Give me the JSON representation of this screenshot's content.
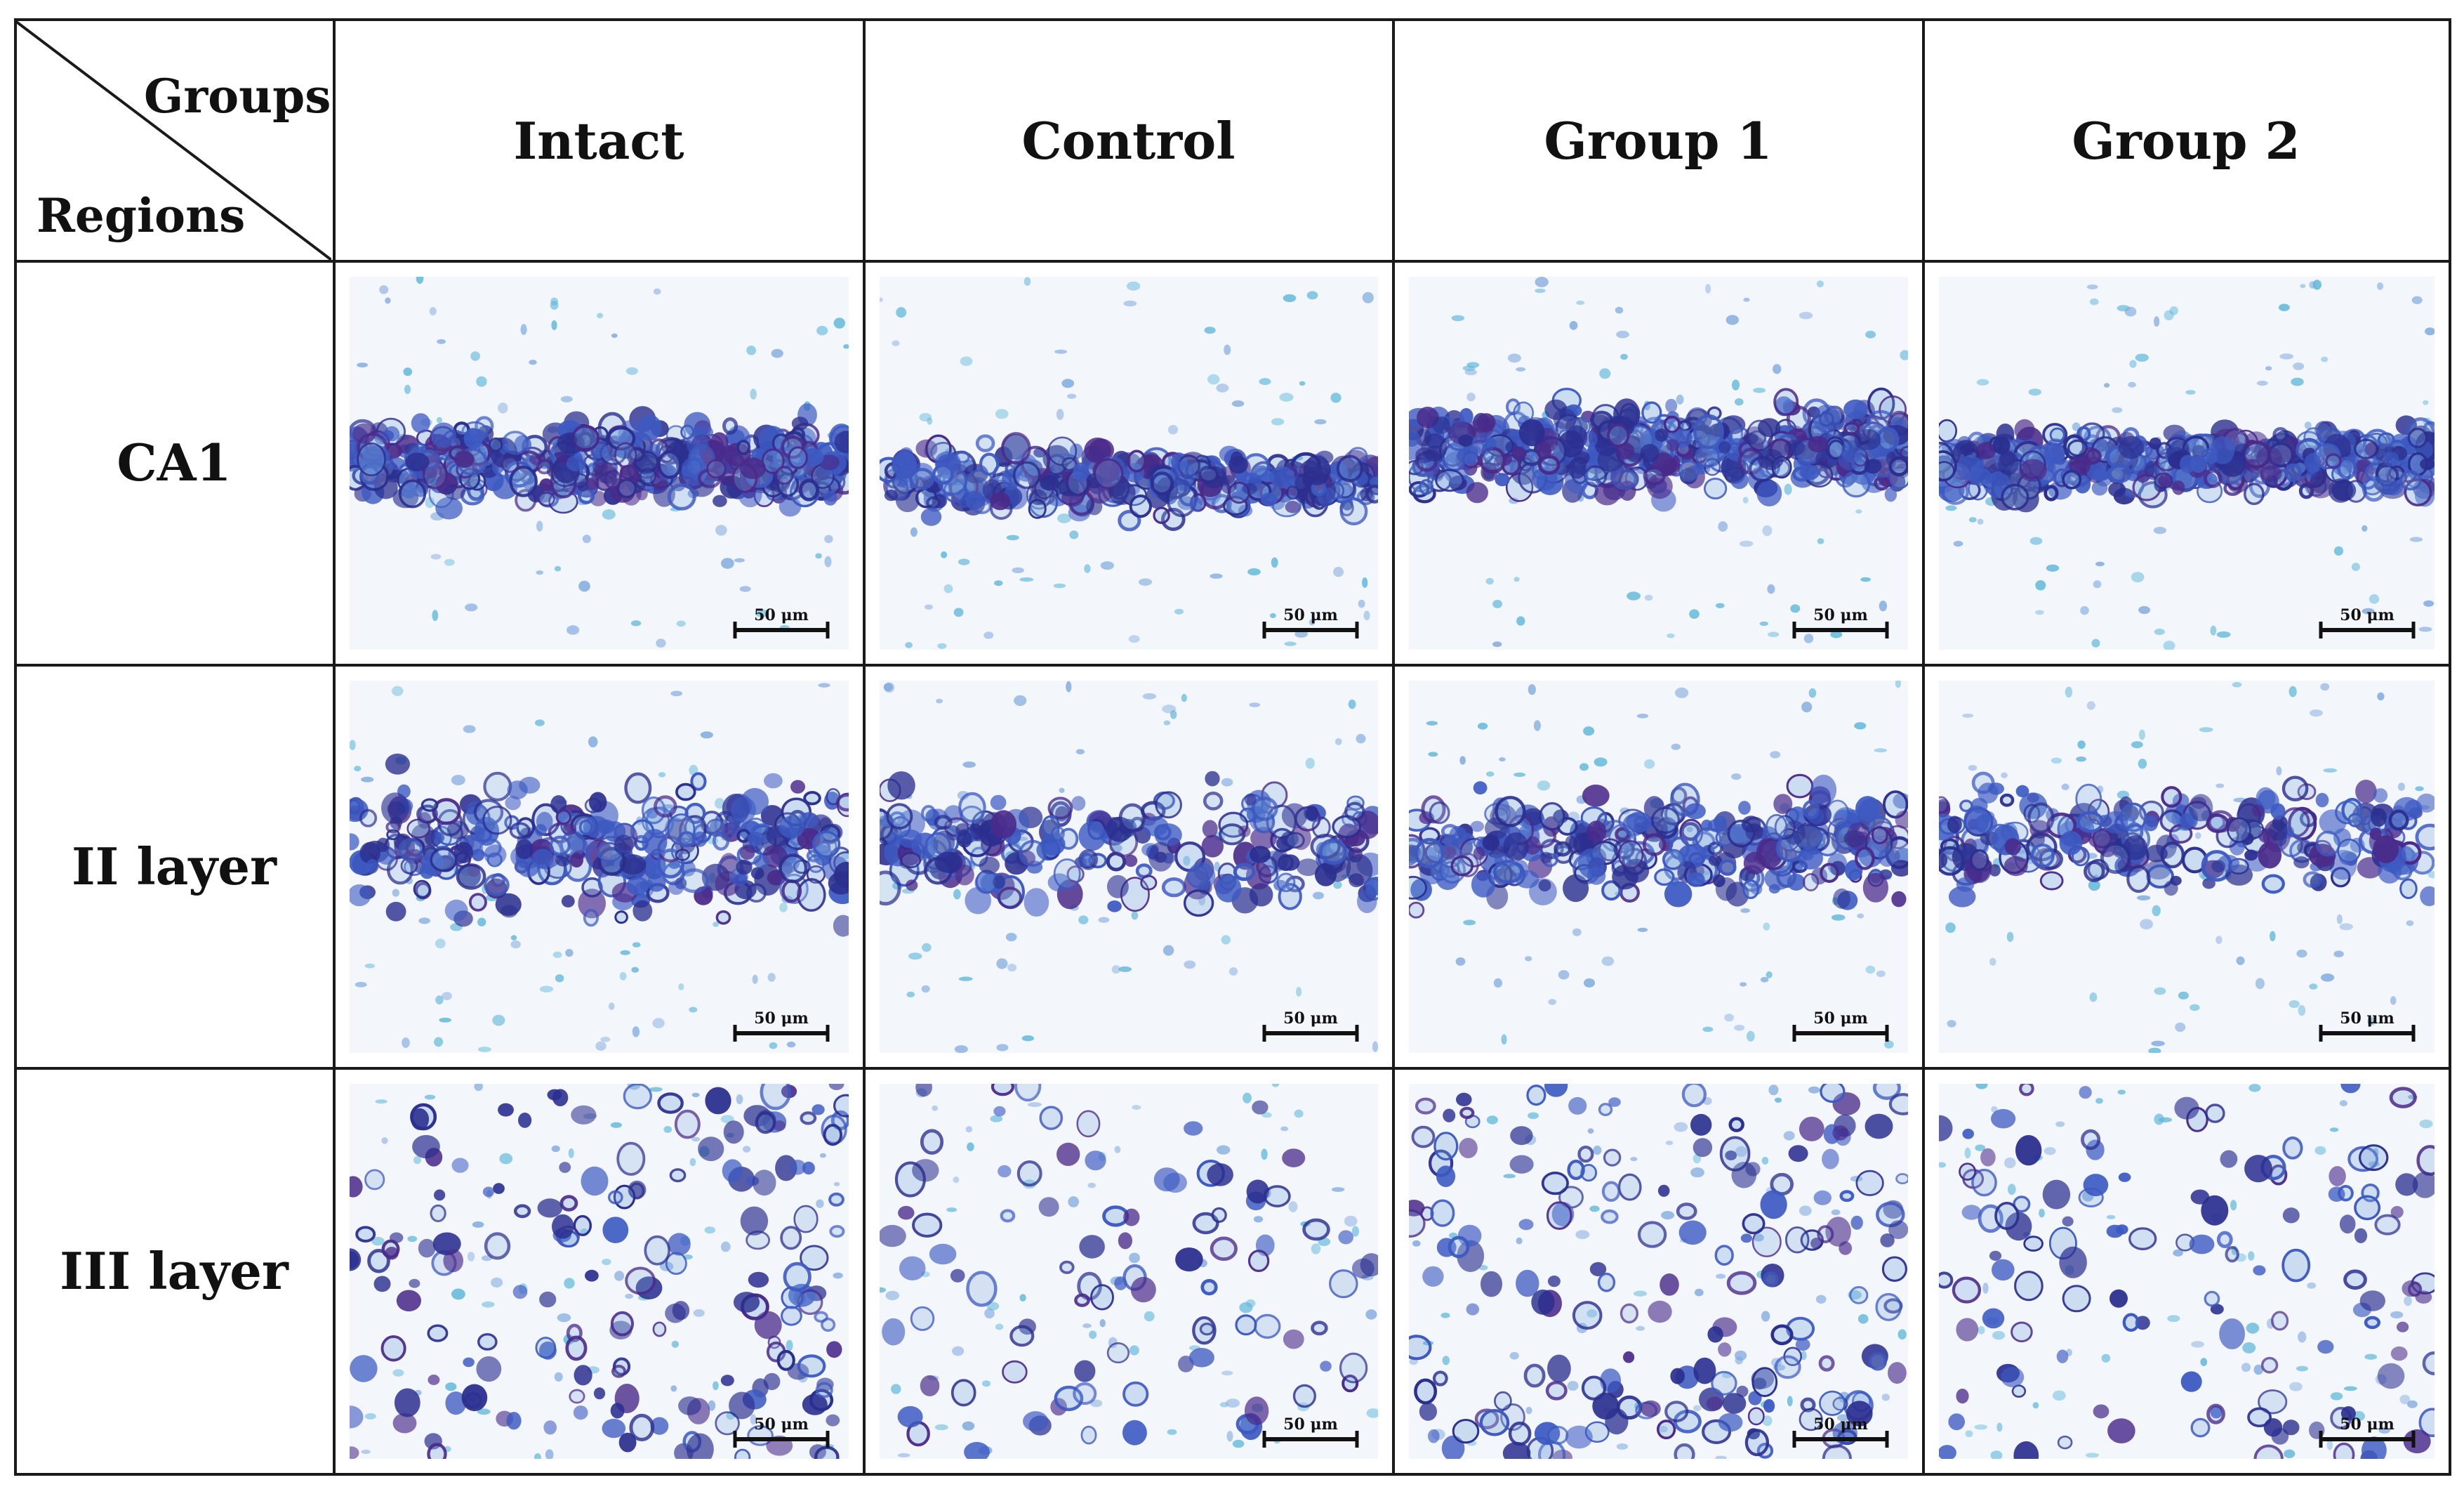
{
  "table": {
    "corner": {
      "top_label": "Groups",
      "bottom_label": "Regions"
    },
    "columns": [
      "Intact",
      "Control",
      "Group 1",
      "Group 2"
    ],
    "rows": [
      "CA1",
      "II layer",
      "III layer"
    ]
  },
  "scale_bar": {
    "label": "50 μm"
  },
  "colors": {
    "background": "#f3f6fb",
    "stain_dark": "#2b2f8f",
    "stain_mid": "#3d5ac2",
    "stain_light": "#7fa9dd",
    "stain_violet": "#4a2a8a",
    "grid": "#1a1a1a"
  }
}
